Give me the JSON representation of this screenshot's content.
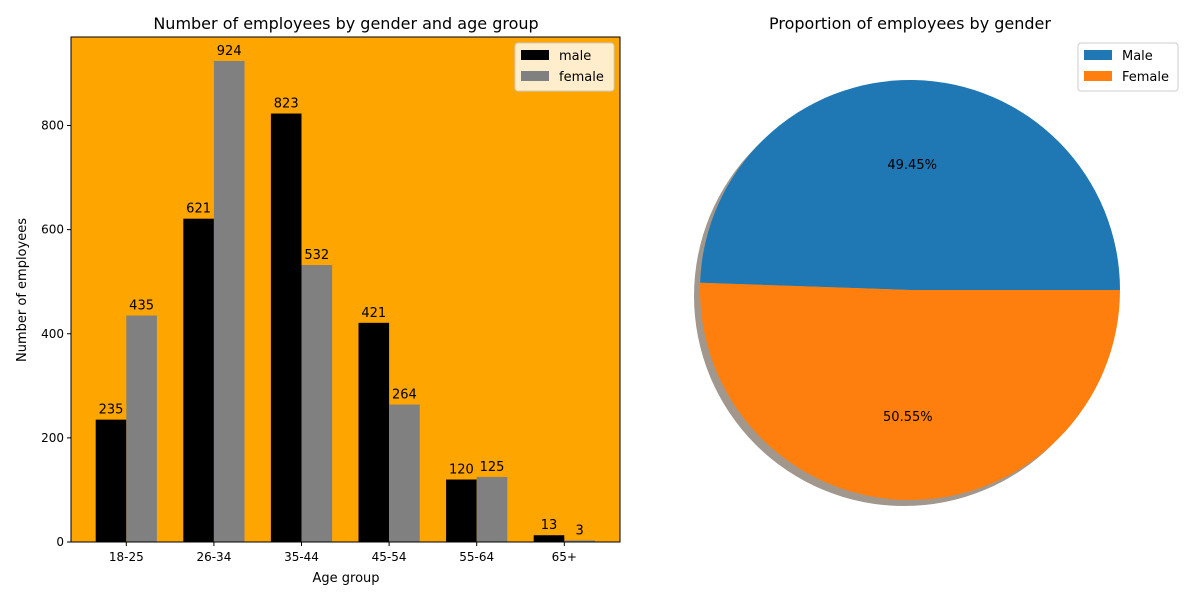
{
  "chart_data": [
    {
      "type": "bar",
      "title": "Number of employees by gender and age group",
      "xlabel": "Age group",
      "ylabel": "Number of employees",
      "categories": [
        "18-25",
        "26-34",
        "35-44",
        "45-54",
        "55-64",
        "65+"
      ],
      "series": [
        {
          "name": "male",
          "values": [
            235,
            621,
            823,
            421,
            120,
            13
          ],
          "color": "#000000"
        },
        {
          "name": "female",
          "values": [
            435,
            924,
            532,
            264,
            125,
            3
          ],
          "color": "#808080"
        }
      ],
      "yticks": [
        0,
        200,
        400,
        600,
        800
      ],
      "ylim": [
        0,
        970
      ],
      "background": "#ffa500",
      "legend": "top-right",
      "grid": false
    },
    {
      "type": "pie",
      "title": "Proportion of employees by gender",
      "labels": [
        "Male",
        "Female"
      ],
      "values": [
        49.45,
        50.55
      ],
      "pct_labels": [
        "49.45%",
        "50.55%"
      ],
      "colors": [
        "#1f77b4",
        "#ff7f0e"
      ],
      "shadow": true,
      "legend": "top-right"
    }
  ]
}
